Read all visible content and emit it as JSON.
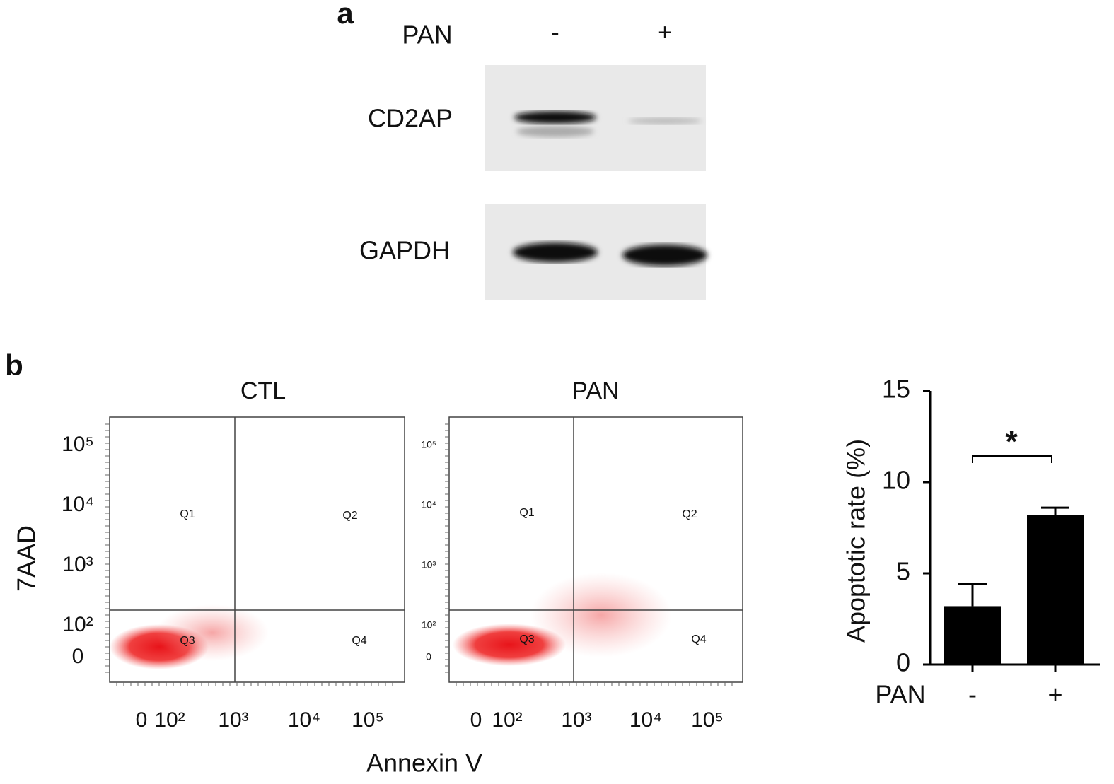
{
  "panel_a": {
    "label": "a",
    "treatment_label": "PAN",
    "lanes": [
      "-",
      "+"
    ],
    "blots": [
      {
        "protein": "CD2AP"
      },
      {
        "protein": "GAPDH"
      }
    ]
  },
  "panel_b": {
    "label": "b",
    "y_axis_label": "7AAD",
    "x_axis_label": "Annexin V",
    "flow_plots": [
      {
        "title": "CTL",
        "quadrants": [
          "Q1",
          "Q2",
          "Q3",
          "Q4"
        ],
        "xtick_labels": [
          "0",
          "10²",
          "10³",
          "10⁴",
          "10⁵"
        ],
        "ytick_labels": [
          "0",
          "10²",
          "10³",
          "10⁴",
          "10⁵"
        ]
      },
      {
        "title": "PAN",
        "quadrants": [
          "Q1",
          "Q2",
          "Q3",
          "Q4"
        ],
        "xtick_labels": [
          "0",
          "10²",
          "10³",
          "10⁴",
          "10⁵"
        ],
        "ytick_labels": [
          "0",
          "10²",
          "10³",
          "10⁴",
          "10⁵"
        ]
      }
    ]
  },
  "chart_data": {
    "type": "bar",
    "ylabel": "Apoptotic rate (%)",
    "xlabel": "PAN",
    "categories": [
      "-",
      "+"
    ],
    "values": [
      3.2,
      8.2
    ],
    "errors": [
      1.2,
      0.4
    ],
    "color": "#000000",
    "ylim": [
      0,
      15
    ],
    "yticks": [
      0,
      5,
      10,
      15
    ],
    "annotation": "*"
  }
}
